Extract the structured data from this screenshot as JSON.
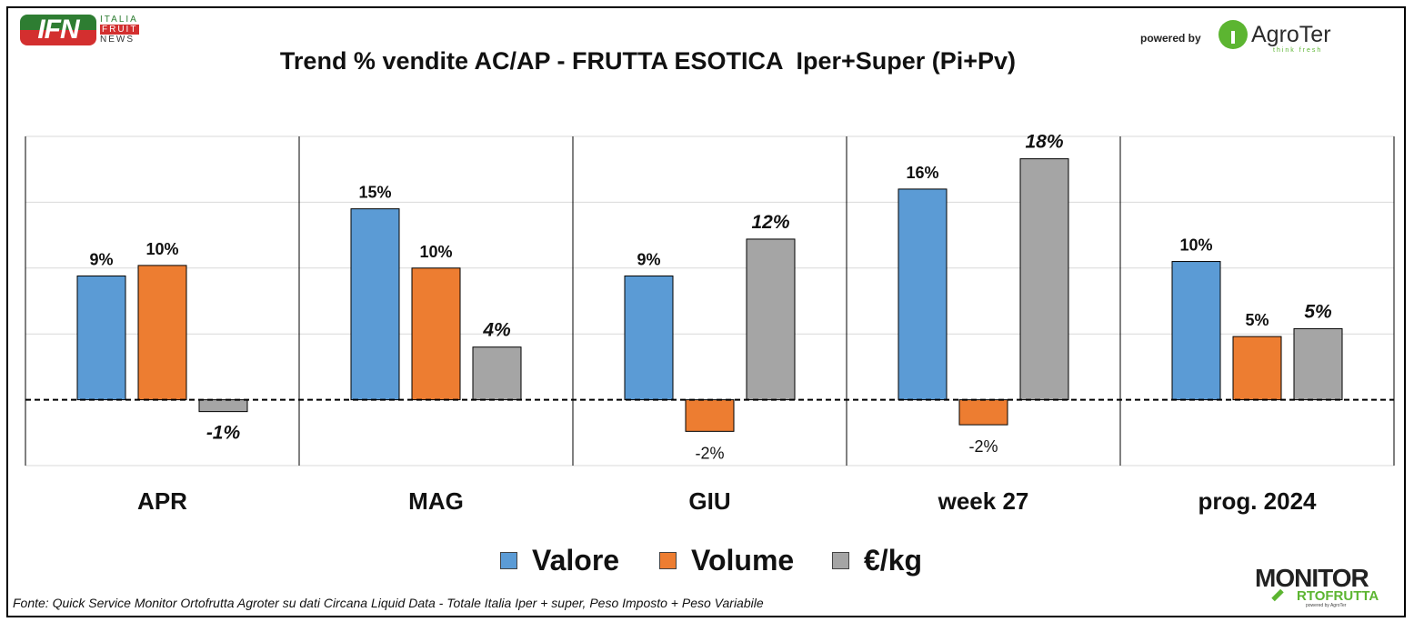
{
  "header": {
    "title": "Trend % vendite AC/AP - FRUTTA ESOTICA  Iper+Super (Pi+Pv)",
    "ifn_logo": {
      "mark": "IFN",
      "line1": "ITALIA",
      "line2": "FRUIT",
      "line3": "NEWS"
    },
    "powered_by": "powered by",
    "agroter_logo": {
      "name": "AgroTer",
      "tagline": "think fresh"
    }
  },
  "footer": {
    "source": "Fonte: Quick Service Monitor Ortofrutta Agroter su dati Circana Liquid Data - Totale Italia Iper + super, Peso Imposto + Peso Variabile",
    "monitor_logo": {
      "line1": "MONITOR",
      "line2": "RTOFRUTTA",
      "line3": "powered by AgroTer"
    }
  },
  "colors": {
    "valore": "#5b9bd5",
    "volume": "#ed7d31",
    "eurkg": "#a5a5a5"
  },
  "chart_data": {
    "type": "bar",
    "title": "Trend % vendite AC/AP - FRUTTA ESOTICA  Iper+Super (Pi+Pv)",
    "xlabel": "",
    "ylabel": "",
    "ylim": [
      -5,
      20
    ],
    "grid": true,
    "legend_position": "bottom",
    "categories": [
      "APR",
      "MAG",
      "GIU",
      "week 27",
      "prog. 2024"
    ],
    "series": [
      {
        "name": "Valore",
        "color": "#5b9bd5",
        "values": [
          9.4,
          14.5,
          9.4,
          16.0,
          10.5
        ],
        "labels": [
          "9%",
          "15%",
          "9%",
          "16%",
          "10%"
        ],
        "label_style": "bold"
      },
      {
        "name": "Volume",
        "color": "#ed7d31",
        "values": [
          10.2,
          10.0,
          -2.4,
          -1.9,
          4.8
        ],
        "labels": [
          "10%",
          "10%",
          "-2%",
          "-2%",
          "5%"
        ],
        "label_style": "bold"
      },
      {
        "name": "€/kg",
        "color": "#a5a5a5",
        "values": [
          -0.9,
          4.0,
          12.2,
          18.3,
          5.4
        ],
        "labels": [
          "-1%",
          "4%",
          "12%",
          "18%",
          "5%"
        ],
        "label_style": "bold-italic"
      }
    ]
  }
}
